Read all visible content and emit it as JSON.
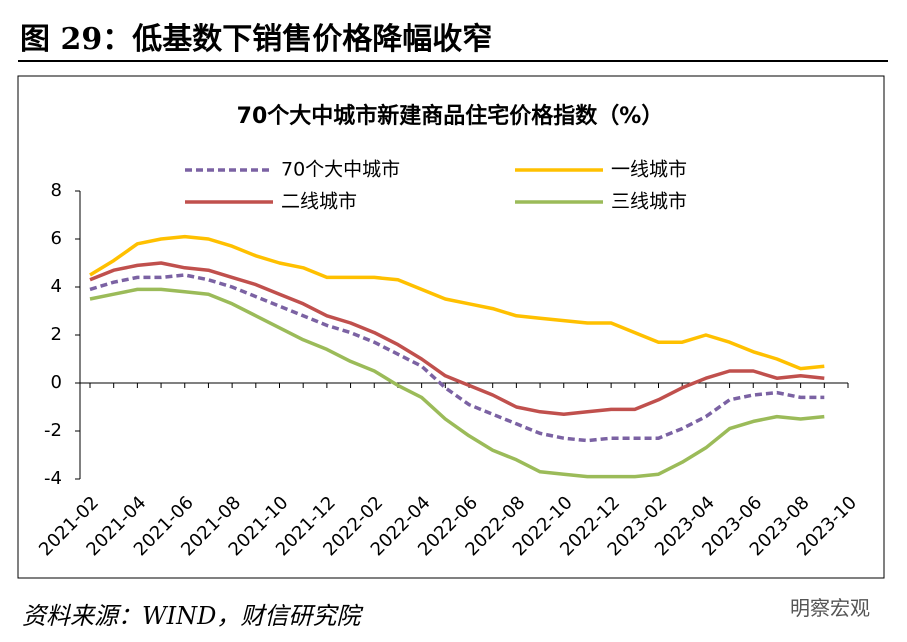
{
  "header": {
    "title": "图 29：低基数下销售价格降幅收窄"
  },
  "source": "资料来源：WIND，财信研究院",
  "watermark": "明察宏观",
  "chart_data": {
    "type": "line",
    "title": "70个大中城市新建商品住宅价格指数（%）",
    "categories": [
      "2021-02",
      null,
      "2021-04",
      null,
      "2021-06",
      null,
      "2021-08",
      null,
      "2021-10",
      null,
      "2021-12",
      null,
      "2022-02",
      null,
      "2022-04",
      null,
      "2022-06",
      null,
      "2022-08",
      null,
      "2022-10",
      null,
      "2022-12",
      null,
      "2023-02",
      null,
      "2023-04",
      null,
      "2023-06",
      null,
      "2023-08",
      null,
      "2023-10"
    ],
    "series": [
      {
        "name": "70个大中城市",
        "color": "#7b62a3",
        "dashed": true,
        "values": [
          3.9,
          4.2,
          4.4,
          4.4,
          4.5,
          4.3,
          4.0,
          3.6,
          3.2,
          2.8,
          2.4,
          2.1,
          1.7,
          1.2,
          0.7,
          -0.2,
          -0.9,
          -1.3,
          -1.7,
          -2.1,
          -2.3,
          -2.4,
          -2.3,
          -2.3,
          -2.3,
          -1.9,
          -1.4,
          -0.7,
          -0.5,
          -0.4,
          -0.6,
          -0.6,
          null
        ]
      },
      {
        "name": "一线城市",
        "color": "#ffc000",
        "values": [
          4.5,
          5.1,
          5.8,
          6.0,
          6.1,
          6.0,
          5.7,
          5.3,
          5.0,
          4.8,
          4.4,
          4.4,
          4.4,
          4.3,
          3.9,
          3.5,
          3.3,
          3.1,
          2.8,
          2.7,
          2.6,
          2.5,
          2.5,
          2.1,
          1.7,
          1.7,
          2.0,
          1.7,
          1.3,
          1.0,
          0.6,
          0.7,
          null
        ]
      },
      {
        "name": "二线城市",
        "color": "#c0504d",
        "values": [
          4.3,
          4.7,
          4.9,
          5.0,
          4.8,
          4.7,
          4.4,
          4.1,
          3.7,
          3.3,
          2.8,
          2.5,
          2.1,
          1.6,
          1.0,
          0.3,
          -0.1,
          -0.5,
          -1.0,
          -1.2,
          -1.3,
          -1.2,
          -1.1,
          -1.1,
          -0.7,
          -0.2,
          0.2,
          0.5,
          0.5,
          0.2,
          0.3,
          0.2,
          null
        ]
      },
      {
        "name": "三线城市",
        "color": "#9bbb59",
        "values": [
          3.5,
          3.7,
          3.9,
          3.9,
          3.8,
          3.7,
          3.3,
          2.8,
          2.3,
          1.8,
          1.4,
          0.9,
          0.5,
          -0.1,
          -0.6,
          -1.5,
          -2.2,
          -2.8,
          -3.2,
          -3.7,
          -3.8,
          -3.9,
          -3.9,
          -3.9,
          -3.8,
          -3.3,
          -2.7,
          -1.9,
          -1.6,
          -1.4,
          -1.5,
          -1.4,
          null
        ]
      }
    ],
    "ylim": [
      -4,
      8
    ],
    "yticks": [
      -4,
      -2,
      0,
      2,
      4,
      6,
      8
    ],
    "negative_tick_color": "#c00000",
    "grid": false
  }
}
